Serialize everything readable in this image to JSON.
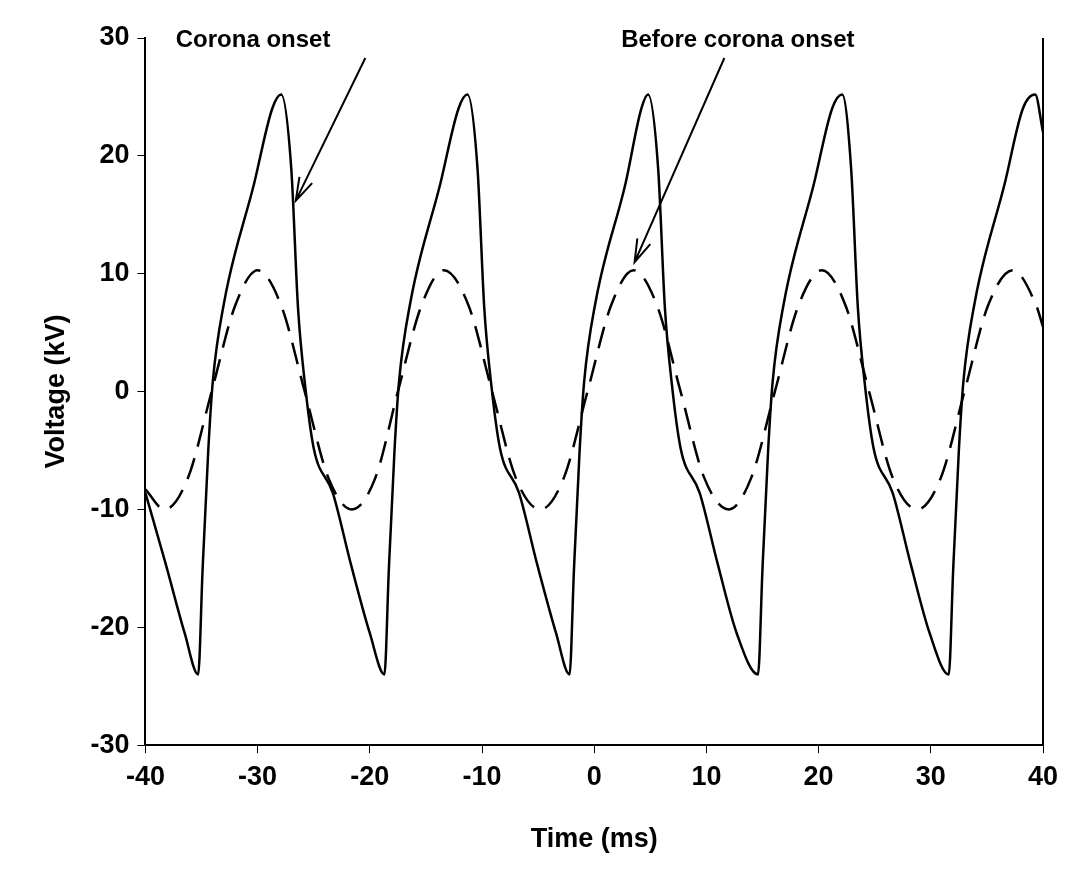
{
  "chart_data": {
    "type": "line",
    "xlabel": "Time (ms)",
    "ylabel": "Voltage (kV)",
    "xlim": [
      -40,
      40
    ],
    "xticks": [
      -40,
      -30,
      -20,
      -10,
      0,
      10,
      20,
      30,
      40
    ],
    "ylim": [
      -30,
      30
    ],
    "yticks": [
      -30,
      -20,
      -10,
      0,
      10,
      20,
      30
    ],
    "grid": false,
    "legend": false,
    "marker": "none",
    "series": [
      {
        "color": "#000000",
        "line_style": "solid",
        "x": [
          -40,
          -38.2,
          -36.5,
          -35.3,
          -34.9,
          -34.4,
          -34.0,
          -33.0,
          -30.3,
          -28.7,
          -27.9,
          -27.0,
          -26.4,
          -25.8,
          -25.0,
          -23.3,
          -21.7,
          -20.0,
          -18.7,
          -18.3,
          -17.8,
          -17.4,
          -16.4,
          -13.7,
          -12.1,
          -11.3,
          -10.4,
          -9.8,
          -9.2,
          -8.4,
          -6.7,
          -5.1,
          -3.4,
          -2.2,
          -1.8,
          -1.3,
          -0.9,
          0.1,
          2.8,
          4.2,
          4.8,
          5.7,
          6.3,
          6.9,
          7.7,
          9.4,
          11.0,
          12.7,
          14.6,
          15.0,
          15.5,
          15.9,
          16.9,
          19.6,
          21.2,
          22.1,
          22.9,
          23.5,
          24.1,
          24.9,
          26.6,
          28.2,
          29.9,
          31.6,
          32.0,
          32.5,
          32.9,
          33.9,
          36.6,
          38.2,
          39.3,
          40
        ],
        "values": [
          -8.6,
          -14.6,
          -20.5,
          -24,
          -15,
          -5,
          0.8,
          7.5,
          17.7,
          24,
          25.2,
          18.9,
          7.1,
          0.8,
          -4.8,
          -8.6,
          -14.6,
          -20.5,
          -24,
          -15,
          -5,
          0.8,
          7.5,
          17.7,
          24,
          25.2,
          18.9,
          7.1,
          0.8,
          -4.8,
          -8.6,
          -14.6,
          -20.5,
          -24,
          -15,
          -5,
          0.8,
          7.5,
          17.7,
          24,
          25.2,
          18.9,
          7.1,
          0.8,
          -4.8,
          -8.6,
          -14.6,
          -20.5,
          -24,
          -15,
          -5,
          0.8,
          7.5,
          17.7,
          24,
          25.2,
          18.9,
          7.1,
          0.8,
          -4.8,
          -8.6,
          -14.6,
          -20.5,
          -24,
          -15,
          -5,
          0.8,
          7.5,
          17.7,
          24,
          25.2,
          22
        ]
      },
      {
        "color": "#000000",
        "line_style": "dashed",
        "x": [
          -40,
          -38.3,
          -36.2,
          -34.1,
          -32.0,
          -30.0,
          -27.9,
          -25.8,
          -23.7,
          -21.6,
          -19.5,
          -17.5,
          -15.4,
          -13.4,
          -11.2,
          -9.1,
          -7.0,
          -4.8,
          -2.7,
          -0.6,
          1.5,
          3.5,
          5.6,
          7.7,
          9.8,
          12.0,
          14.0,
          16.1,
          18.2,
          20.3,
          22.4,
          24.5,
          26.6,
          28.8,
          30.9,
          33.0,
          35.1,
          37.3,
          39.4,
          40
        ],
        "values": [
          -8.3,
          -10,
          -7.3,
          0,
          7.3,
          10.3,
          7.3,
          0,
          -7.3,
          -10,
          -7.3,
          0,
          7.3,
          10.3,
          7.3,
          0,
          -7.3,
          -10,
          -7.3,
          0,
          7.3,
          10.3,
          7.3,
          0,
          -7.3,
          -10,
          -7.3,
          0,
          7.3,
          10.3,
          7.3,
          0,
          -7.3,
          -10,
          -7.3,
          0,
          7.3,
          10.3,
          7.3,
          5.5
        ]
      }
    ],
    "annotations": [
      "Corona onset",
      "Before corona onset"
    ]
  }
}
